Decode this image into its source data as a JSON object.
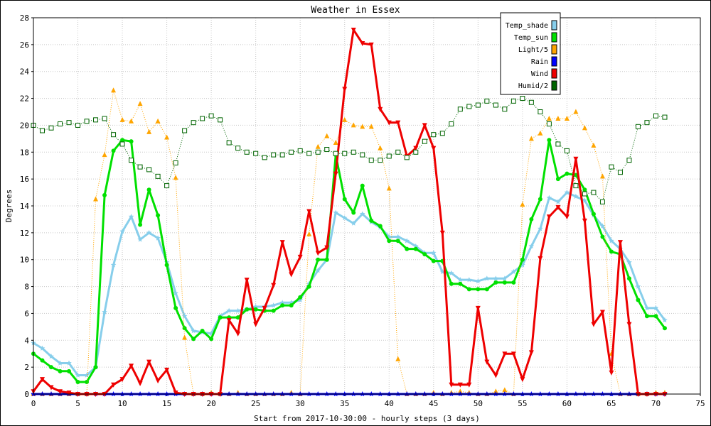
{
  "chart_data": {
    "type": "line",
    "title": "Weather in Essex",
    "xlabel": "Start from 2017-10-30:00 - hourly steps (3 days)",
    "ylabel": "Degrees",
    "xlim": [
      0,
      75
    ],
    "ylim": [
      0,
      28
    ],
    "x_ticks": [
      0,
      5,
      10,
      15,
      20,
      25,
      30,
      35,
      40,
      45,
      50,
      55,
      60,
      65,
      70,
      75
    ],
    "y_ticks": [
      0,
      2,
      4,
      6,
      8,
      10,
      12,
      14,
      16,
      18,
      20,
      22,
      24,
      26,
      28
    ],
    "legend_position": "top-right",
    "x": [
      0,
      1,
      2,
      3,
      4,
      5,
      6,
      7,
      8,
      9,
      10,
      11,
      12,
      13,
      14,
      15,
      16,
      17,
      18,
      19,
      20,
      21,
      22,
      23,
      24,
      25,
      26,
      27,
      28,
      29,
      30,
      31,
      32,
      33,
      34,
      35,
      36,
      37,
      38,
      39,
      40,
      41,
      42,
      43,
      44,
      45,
      46,
      47,
      48,
      49,
      50,
      51,
      52,
      53,
      54,
      55,
      56,
      57,
      58,
      59,
      60,
      61,
      62,
      63,
      64,
      65,
      66,
      67,
      68,
      69,
      70,
      71
    ],
    "series": [
      {
        "name": "Temp_shade",
        "color": "#87ceeb",
        "marker": "star",
        "line": "solid",
        "width": 3,
        "values": [
          3.8,
          3.4,
          2.8,
          2.3,
          2.3,
          1.4,
          1.4,
          2.0,
          6.1,
          9.6,
          12.1,
          13.2,
          11.5,
          12.0,
          11.6,
          9.8,
          7.5,
          5.8,
          4.7,
          4.6,
          4.5,
          5.8,
          6.2,
          6.2,
          6.3,
          6.5,
          6.5,
          6.6,
          6.8,
          6.8,
          7.0,
          8.2,
          9.2,
          10.0,
          13.5,
          13.1,
          12.7,
          13.4,
          12.8,
          12.4,
          11.7,
          11.7,
          11.4,
          11.0,
          10.5,
          10.5,
          9.1,
          9.0,
          8.5,
          8.5,
          8.4,
          8.6,
          8.6,
          8.6,
          9.1,
          9.6,
          11.0,
          12.3,
          14.6,
          14.3,
          15.0,
          14.7,
          14.4,
          13.3,
          12.5,
          11.4,
          10.8,
          9.8,
          8.0,
          6.4,
          6.4,
          5.5
        ]
      },
      {
        "name": "Temp_sun",
        "color": "#00e000",
        "marker": "circle",
        "line": "solid",
        "width": 3,
        "values": [
          3.0,
          2.5,
          2.0,
          1.7,
          1.7,
          0.9,
          0.9,
          2.0,
          14.8,
          18.1,
          18.9,
          18.8,
          12.6,
          15.2,
          13.3,
          9.6,
          6.4,
          4.9,
          4.1,
          4.7,
          4.1,
          5.7,
          5.7,
          5.7,
          6.3,
          6.3,
          6.2,
          6.2,
          6.6,
          6.6,
          7.2,
          8.0,
          10.0,
          10.0,
          17.8,
          14.5,
          13.5,
          15.5,
          12.9,
          12.5,
          11.4,
          11.4,
          10.8,
          10.8,
          10.4,
          9.9,
          9.9,
          8.2,
          8.2,
          7.8,
          7.8,
          7.8,
          8.3,
          8.3,
          8.3,
          10.0,
          13.0,
          14.5,
          18.9,
          16.0,
          16.4,
          16.3,
          15.2,
          13.4,
          11.7,
          10.6,
          10.4,
          8.6,
          7.0,
          5.8,
          5.8,
          4.9
        ]
      },
      {
        "name": "Light/5",
        "color": "#ffa500",
        "marker": "triangle",
        "line": "dotted",
        "width": 1,
        "values": [
          0,
          0,
          0,
          0,
          0,
          0,
          0,
          14.5,
          17.8,
          22.6,
          20.4,
          20.3,
          21.6,
          19.5,
          20.3,
          19.1,
          16.1,
          4.2,
          0,
          0,
          0.1,
          0,
          0,
          0.1,
          0,
          0,
          0,
          0,
          0,
          0.1,
          0,
          11.9,
          18.4,
          19.2,
          18.7,
          20.4,
          20.0,
          19.9,
          19.9,
          18.3,
          15.3,
          2.6,
          0,
          0,
          0,
          0.1,
          0,
          0.1,
          0.2,
          0.1,
          0,
          0,
          0.2,
          0.3,
          0,
          14.1,
          19.0,
          19.4,
          20.5,
          20.5,
          20.5,
          21.0,
          19.8,
          18.5,
          16.2,
          3.0,
          0,
          0,
          0,
          0,
          0.1,
          0.1
        ]
      },
      {
        "name": "Rain",
        "color": "#0000ff",
        "marker": "star",
        "line": "solid",
        "width": 3,
        "values": [
          0,
          0,
          0,
          0,
          0,
          0,
          0,
          0,
          0,
          0,
          0,
          0,
          0,
          0,
          0,
          0,
          0,
          0,
          0,
          0,
          0,
          0,
          0,
          0,
          0,
          0,
          0,
          0,
          0,
          0,
          0,
          0,
          0,
          0,
          0,
          0,
          0,
          0,
          0,
          0,
          0,
          0,
          0,
          0,
          0,
          0,
          0,
          0,
          0,
          0,
          0,
          0,
          0,
          0,
          0,
          0,
          0,
          0,
          0,
          0,
          0,
          0,
          0,
          0,
          0,
          0,
          0,
          0,
          0,
          0,
          0,
          0
        ]
      },
      {
        "name": "Wind",
        "color": "#ee0000",
        "marker": "triangle-down",
        "line": "solid",
        "width": 3,
        "values": [
          0.2,
          1.1,
          0.5,
          0.2,
          0.1,
          0,
          0,
          0,
          0,
          0.7,
          1.1,
          2.1,
          0.8,
          2.4,
          1.0,
          1.8,
          0.1,
          0,
          0,
          0,
          0,
          0,
          5.5,
          4.5,
          8.5,
          5.2,
          6.4,
          8.1,
          11.3,
          8.9,
          10.2,
          13.6,
          10.5,
          10.9,
          16.4,
          22.7,
          27.1,
          26.1,
          26.0,
          21.2,
          20.2,
          20.2,
          17.7,
          18.3,
          20.0,
          18.3,
          12.0,
          0.7,
          0.7,
          0.7,
          6.4,
          2.4,
          1.4,
          3.0,
          3.0,
          1.1,
          3.1,
          10.1,
          13.2,
          13.9,
          13.2,
          17.5,
          12.9,
          5.2,
          6.1,
          1.6,
          11.3,
          5.2,
          0,
          0,
          0,
          0
        ]
      },
      {
        "name": "Humid/2",
        "color": "#006400",
        "marker": "square",
        "line": "dotted",
        "width": 1,
        "values": [
          20.0,
          19.6,
          19.8,
          20.1,
          20.2,
          20.0,
          20.3,
          20.4,
          20.5,
          19.3,
          18.6,
          17.4,
          16.9,
          16.7,
          16.2,
          15.5,
          17.2,
          19.6,
          20.2,
          20.5,
          20.7,
          20.4,
          18.7,
          18.3,
          18.0,
          17.9,
          17.6,
          17.8,
          17.8,
          18.0,
          18.1,
          17.9,
          18.0,
          18.2,
          17.9,
          17.9,
          18.0,
          17.8,
          17.4,
          17.4,
          17.7,
          18.0,
          17.6,
          18.0,
          18.8,
          19.3,
          19.4,
          20.1,
          21.2,
          21.4,
          21.5,
          21.8,
          21.5,
          21.2,
          21.8,
          22.0,
          21.7,
          21.0,
          20.1,
          18.6,
          18.1,
          15.5,
          14.9,
          15.0,
          14.3,
          16.9,
          16.5,
          17.4,
          19.9,
          20.2,
          20.7,
          20.6
        ]
      }
    ]
  }
}
